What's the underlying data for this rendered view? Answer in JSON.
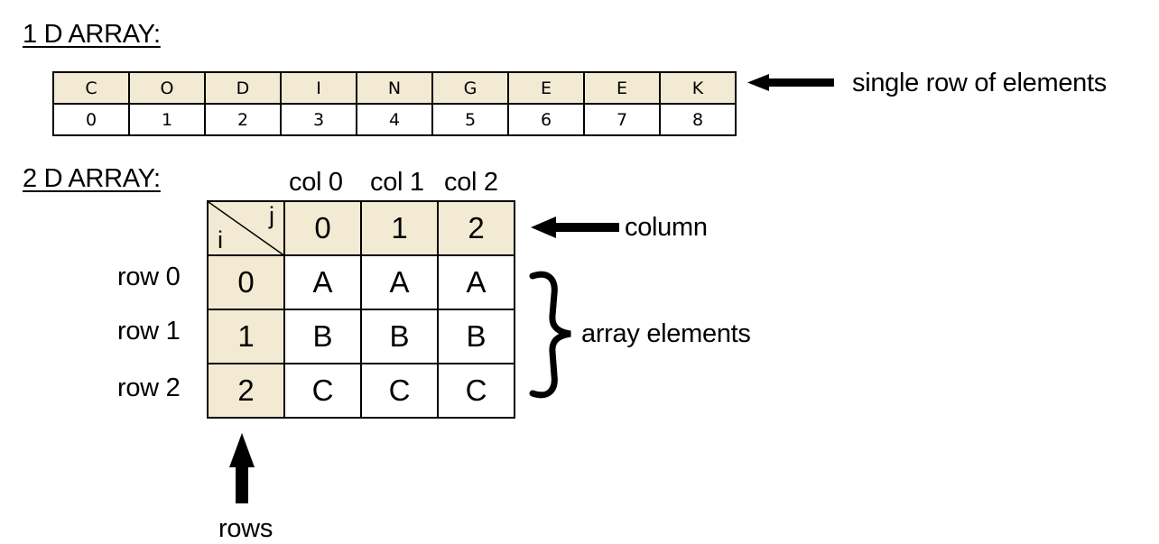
{
  "one_d": {
    "heading": "1 D ARRAY:",
    "chars": [
      "C",
      "O",
      "D",
      "I",
      "N",
      "G",
      "E",
      "E",
      "K"
    ],
    "indices": [
      "0",
      "1",
      "2",
      "3",
      "4",
      "5",
      "6",
      "7",
      "8"
    ],
    "label": "single row of elements"
  },
  "two_d": {
    "heading": "2 D ARRAY:",
    "col_titles": [
      "col 0",
      "col 1",
      "col 2"
    ],
    "corner_j": "j",
    "corner_i": "i",
    "col_indices": [
      "0",
      "1",
      "2"
    ],
    "row_titles": [
      "row 0",
      "row 1",
      "row 2"
    ],
    "row_indices": [
      "0",
      "1",
      "2"
    ],
    "cells": [
      [
        "A",
        "A",
        "A"
      ],
      [
        "B",
        "B",
        "B"
      ],
      [
        "C",
        "C",
        "C"
      ]
    ],
    "column_label": "column",
    "elements_label": "array elements",
    "rows_label": "rows"
  },
  "colors": {
    "header_fill": "#f2ead2",
    "line": "#000000"
  }
}
